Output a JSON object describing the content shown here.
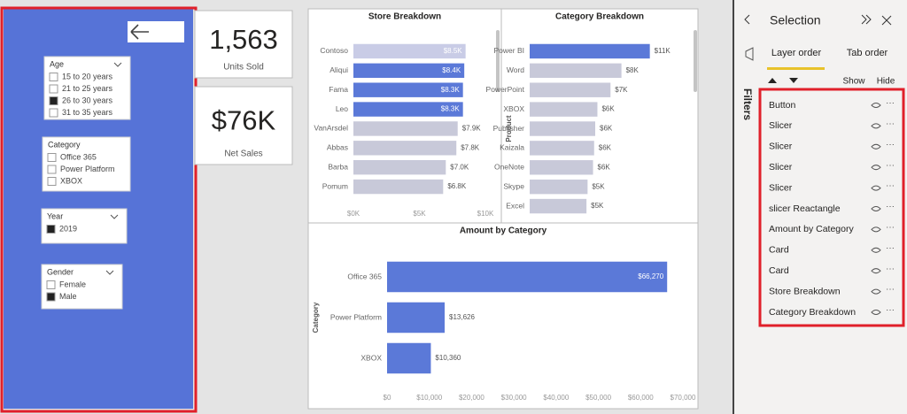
{
  "slicers": [
    {
      "title": "Age",
      "dropdown": true,
      "items": [
        {
          "label": "15 to 20 years",
          "checked": false
        },
        {
          "label": "21 to 25 years",
          "checked": false
        },
        {
          "label": "26 to 30 years",
          "checked": true
        },
        {
          "label": "31 to 35 years",
          "checked": false
        }
      ]
    },
    {
      "title": "Category",
      "dropdown": false,
      "items": [
        {
          "label": "Office 365",
          "checked": false
        },
        {
          "label": "Power Platform",
          "checked": false
        },
        {
          "label": "XBOX",
          "checked": false
        }
      ]
    },
    {
      "title": "Year",
      "dropdown": true,
      "items": [
        {
          "label": "2019",
          "checked": true
        }
      ]
    },
    {
      "title": "Gender",
      "dropdown": true,
      "items": [
        {
          "label": "Female",
          "checked": false
        },
        {
          "label": "Male",
          "checked": true
        }
      ]
    }
  ],
  "cards": [
    {
      "value": "1,563",
      "label": "Units Sold"
    },
    {
      "value": "$76K",
      "label": "Net Sales"
    }
  ],
  "chart_data": [
    {
      "type": "bar",
      "orientation": "horizontal",
      "title": "Store Breakdown",
      "categories": [
        "Contoso",
        "Aliqui",
        "Fama",
        "Leo",
        "VanArsdel",
        "Abbas",
        "Barba",
        "Pomum"
      ],
      "values": [
        8500,
        8400,
        8300,
        8300,
        7900,
        7800,
        7000,
        6800
      ],
      "value_labels": [
        "$8.5K",
        "$8.4K",
        "$8.3K",
        "$8.3K",
        "$7.9K",
        "$7.8K",
        "$7.0K",
        "$6.8K"
      ],
      "colors": [
        "#c9cce6",
        "#5b79d8",
        "#5b79d8",
        "#5b79d8",
        "#c8c9d9",
        "#c8c9d9",
        "#c8c9d9",
        "#c8c9d9"
      ],
      "label_inside": [
        true,
        true,
        true,
        true,
        false,
        false,
        false,
        false
      ],
      "xlim": [
        0,
        10000
      ],
      "xticks": [
        {
          "value": 0,
          "label": "$0K"
        },
        {
          "value": 5000,
          "label": "$5K"
        },
        {
          "value": 10000,
          "label": "$10K"
        }
      ]
    },
    {
      "type": "bar",
      "orientation": "horizontal",
      "title": "Category Breakdown",
      "y_label": "Product",
      "categories": [
        "Power BI",
        "Word",
        "PowerPoint",
        "XBOX",
        "Publisher",
        "Kaizala",
        "OneNote",
        "Skype",
        "Excel"
      ],
      "values": [
        11000,
        8400,
        7400,
        6200,
        6000,
        5900,
        5800,
        5300,
        5200
      ],
      "value_labels": [
        "$11K",
        "$8K",
        "$7K",
        "$6K",
        "$6K",
        "$6K",
        "$6K",
        "$5K",
        "$5K"
      ],
      "colors": [
        "#5b79d8",
        "#c8c9d9",
        "#c8c9d9",
        "#c8c9d9",
        "#c8c9d9",
        "#c8c9d9",
        "#c8c9d9",
        "#c8c9d9",
        "#c8c9d9"
      ],
      "label_inside": [
        false,
        false,
        false,
        false,
        false,
        false,
        false,
        false,
        false
      ],
      "xlim": [
        0,
        12000
      ]
    },
    {
      "type": "bar",
      "orientation": "horizontal",
      "title": "Amount by Category",
      "y_label": "Category",
      "categories": [
        "Office 365",
        "Power Platform",
        "XBOX"
      ],
      "values": [
        66270,
        13626,
        10360
      ],
      "value_labels": [
        "$66,270",
        "$13,626",
        "$10,360"
      ],
      "colors": [
        "#5b79d8",
        "#5b79d8",
        "#5b79d8"
      ],
      "label_inside": [
        true,
        false,
        false
      ],
      "xlim": [
        0,
        70000
      ],
      "xticks": [
        {
          "value": 0,
          "label": "$0"
        },
        {
          "value": 10000,
          "label": "$10,000"
        },
        {
          "value": 20000,
          "label": "$20,000"
        },
        {
          "value": 30000,
          "label": "$30,000"
        },
        {
          "value": 40000,
          "label": "$40,000"
        },
        {
          "value": 50000,
          "label": "$50,000"
        },
        {
          "value": 60000,
          "label": "$60,000"
        },
        {
          "value": 70000,
          "label": "$70,000"
        }
      ]
    }
  ],
  "filters": "Filters",
  "selection_pane": {
    "title": "Selection",
    "tabs": [
      "Layer order",
      "Tab order"
    ],
    "show": "Show",
    "hide": "Hide",
    "layers": [
      "Button",
      "Slicer",
      "Slicer",
      "Slicer",
      "Slicer",
      "slicer Reactangle",
      "Amount by Category",
      "Card",
      "Card",
      "Store Breakdown",
      "Category Breakdown"
    ]
  }
}
